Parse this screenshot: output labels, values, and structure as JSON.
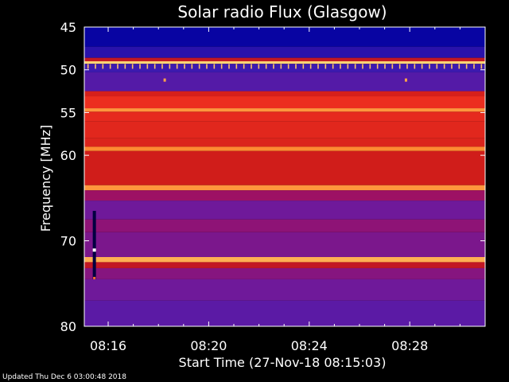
{
  "chart_data": {
    "type": "heatmap",
    "title": "Solar radio Flux (Glasgow)",
    "xlabel": "Start Time (27-Nov-18 08:15:03)",
    "ylabel": "Frequency [MHz]",
    "x_range_minutes": [
      15.05,
      31.0
    ],
    "ylim": [
      80,
      45
    ],
    "x_ticks": [
      {
        "label": "08:16",
        "minute": 16
      },
      {
        "label": "08:20",
        "minute": 20
      },
      {
        "label": "08:24",
        "minute": 24
      },
      {
        "label": "08:28",
        "minute": 28
      }
    ],
    "y_ticks": [
      {
        "label": "45",
        "value": 45
      },
      {
        "label": "50",
        "value": 50
      },
      {
        "label": "55",
        "value": 55
      },
      {
        "label": "60",
        "value": 60
      },
      {
        "label": "70",
        "value": 70
      },
      {
        "label": "80",
        "value": 80
      }
    ],
    "colormap": [
      "#0000a0",
      "#3a1ab0",
      "#6a1aa0",
      "#a01060",
      "#c81818",
      "#f03020",
      "#ff8830",
      "#ffe080"
    ],
    "bands": [
      {
        "from": 45.0,
        "to": 47.3,
        "level": 0.02
      },
      {
        "from": 47.3,
        "to": 48.6,
        "level": 0.1
      },
      {
        "from": 48.6,
        "to": 49.0,
        "level": 0.55
      },
      {
        "from": 49.0,
        "to": 49.3,
        "level": 0.98
      },
      {
        "from": 49.3,
        "to": 50.3,
        "level": 0.15
      },
      {
        "from": 50.3,
        "to": 52.5,
        "level": 0.22
      },
      {
        "from": 52.5,
        "to": 53.1,
        "level": 0.62
      },
      {
        "from": 53.1,
        "to": 54.5,
        "level": 0.7
      },
      {
        "from": 54.5,
        "to": 54.9,
        "level": 0.88
      },
      {
        "from": 54.9,
        "to": 56.0,
        "level": 0.68
      },
      {
        "from": 56.0,
        "to": 58.0,
        "level": 0.66
      },
      {
        "from": 58.0,
        "to": 59.0,
        "level": 0.64
      },
      {
        "from": 59.0,
        "to": 59.5,
        "level": 0.86
      },
      {
        "from": 59.5,
        "to": 63.5,
        "level": 0.6
      },
      {
        "from": 63.5,
        "to": 64.1,
        "level": 0.88
      },
      {
        "from": 64.1,
        "to": 65.3,
        "level": 0.42
      },
      {
        "from": 65.3,
        "to": 67.5,
        "level": 0.3
      },
      {
        "from": 67.5,
        "to": 69.0,
        "level": 0.38
      },
      {
        "from": 69.0,
        "to": 71.9,
        "level": 0.33
      },
      {
        "from": 71.9,
        "to": 72.5,
        "level": 0.92
      },
      {
        "from": 72.5,
        "to": 73.2,
        "level": 0.55
      },
      {
        "from": 73.2,
        "to": 74.5,
        "level": 0.36
      },
      {
        "from": 74.5,
        "to": 77.0,
        "level": 0.3
      },
      {
        "from": 77.0,
        "to": 80.0,
        "level": 0.24
      }
    ],
    "interference_comb": {
      "frequency": 49.6,
      "level": 0.95,
      "count": 54
    },
    "spots": [
      {
        "minute": 18.25,
        "frequency": 51.2,
        "level": 0.9
      },
      {
        "minute": 27.85,
        "frequency": 51.2,
        "level": 0.9
      }
    ],
    "burst": {
      "minute": 15.45,
      "from": 66.5,
      "to": 74.5
    }
  },
  "footer": {
    "text": "Updated Thu Dec  6 03:00:48 2018"
  }
}
